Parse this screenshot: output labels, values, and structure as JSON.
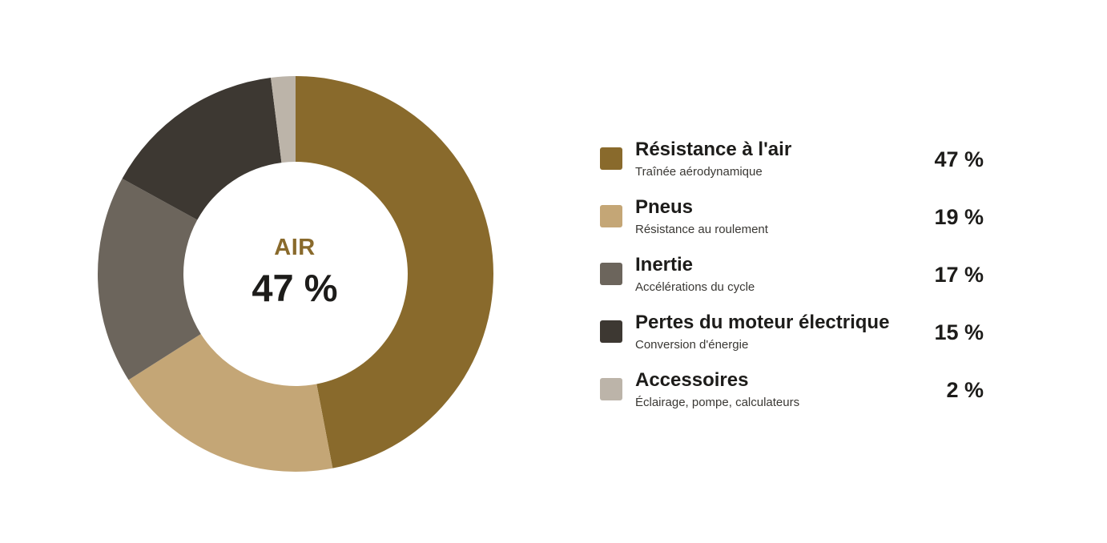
{
  "chart_data": {
    "type": "pie",
    "variant": "donut",
    "center": {
      "title": "AIR",
      "value": "47 %"
    },
    "legend_placement": "right",
    "slices": [
      {
        "label": "Résistance à l'air",
        "sublabel": "Traînée aérodynamique",
        "value": 47,
        "value_label": "47 %",
        "color": "#896a2c"
      },
      {
        "label": "Pneus",
        "sublabel": "Résistance au roulement",
        "value": 19,
        "value_label": "19 %",
        "color": "#c4a676"
      },
      {
        "label": "Inertie",
        "sublabel": "Accélérations du cycle",
        "value": 17,
        "value_label": "17 %",
        "color": "#6c655c"
      },
      {
        "label": "Pertes du moteur électrique",
        "sublabel": "Conversion d'énergie",
        "value": 15,
        "value_label": "15 %",
        "color": "#3d3832"
      },
      {
        "label": "Accessoires",
        "sublabel": "Éclairage, pompe, calculateurs",
        "value": 2,
        "value_label": "2 %",
        "color": "#bcb4a9"
      }
    ]
  },
  "colors": {
    "accent": "#896a2c",
    "text": "#1d1c1a"
  }
}
